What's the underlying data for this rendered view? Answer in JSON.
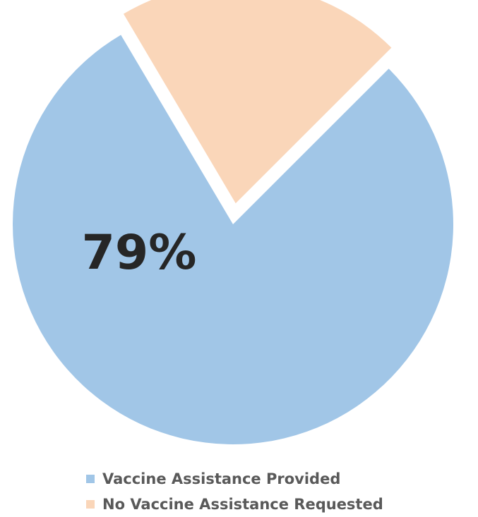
{
  "chart_data": {
    "type": "pie",
    "slices": [
      {
        "name": "Vaccine Assistance Provided",
        "value": 79,
        "color": "#a1c6e7",
        "exploded": false
      },
      {
        "name": "No Vaccine Assistance Requested",
        "value": 21,
        "color": "#fad6b9",
        "exploded": true
      }
    ],
    "data_labels": [
      "79%",
      ""
    ],
    "legend_position": "bottom"
  }
}
